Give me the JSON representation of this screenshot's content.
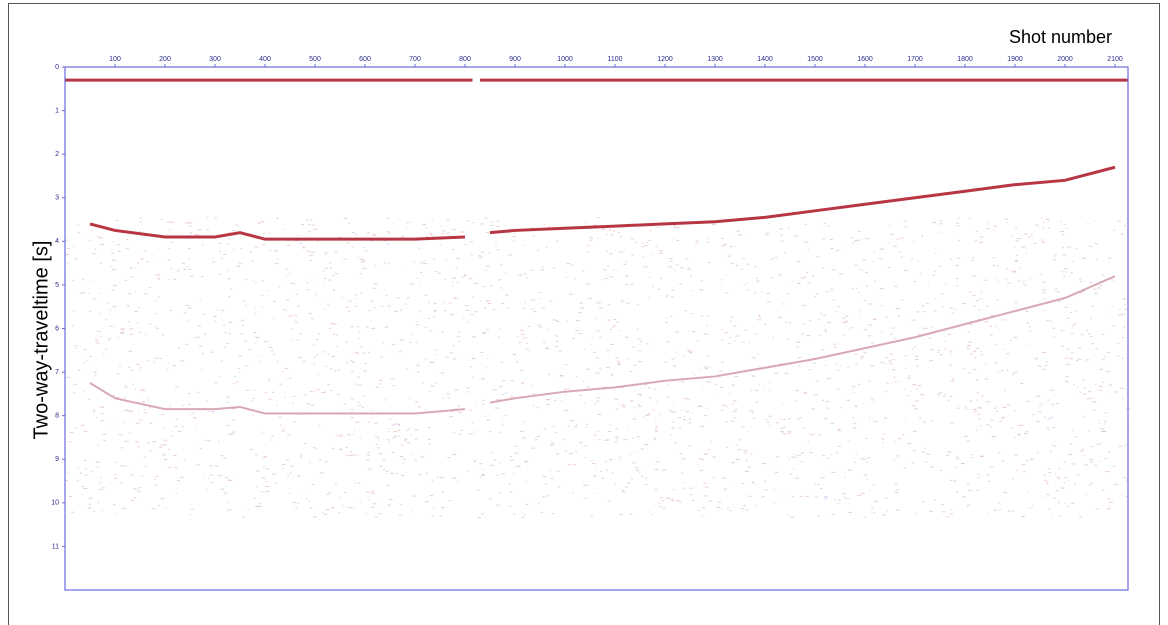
{
  "chart_data": {
    "type": "seismic",
    "xlabel": "Shot number",
    "ylabel": "Two-way-traveltime [s]",
    "xlim": [
      0,
      2126
    ],
    "ylim": [
      0,
      12
    ],
    "y_inverted": true,
    "xticks": [
      100,
      200,
      300,
      400,
      500,
      600,
      700,
      800,
      900,
      1000,
      1100,
      1200,
      1300,
      1400,
      1500,
      1600,
      1700,
      1800,
      1900,
      2000,
      2100
    ],
    "yticks": [
      0,
      1,
      2,
      3,
      4,
      5,
      6,
      7,
      8,
      9,
      10,
      11
    ],
    "frame_color": "#6b6bdc",
    "series": [
      {
        "color": "#b02030",
        "x": [
          0,
          815,
          822,
          830,
          2126
        ],
        "values": [
          0.3,
          0.3,
          null,
          0.3,
          0.3
        ]
      },
      {
        "color": "#b02030",
        "x": [
          50,
          100,
          200,
          300,
          350,
          400,
          500,
          600,
          700,
          800,
          820,
          850,
          900,
          1000,
          1100,
          1200,
          1300,
          1400,
          1500,
          1600,
          1700,
          1800,
          1900,
          2000,
          2100
        ],
        "values": [
          3.6,
          3.75,
          3.9,
          3.9,
          3.8,
          3.95,
          3.95,
          3.95,
          3.95,
          3.9,
          null,
          3.8,
          3.75,
          3.7,
          3.65,
          3.6,
          3.55,
          3.45,
          3.3,
          3.15,
          3.0,
          2.85,
          2.7,
          2.6,
          2.3
        ]
      },
      {
        "color": "#c07080",
        "x": [
          50,
          100,
          200,
          300,
          350,
          400,
          500,
          600,
          700,
          800,
          820,
          850,
          900,
          1000,
          1100,
          1200,
          1300,
          1400,
          1500,
          1600,
          1700,
          1800,
          1900,
          2000,
          2100
        ],
        "values": [
          7.25,
          7.6,
          7.85,
          7.85,
          7.8,
          7.95,
          7.95,
          7.95,
          7.95,
          7.85,
          null,
          7.7,
          7.6,
          7.45,
          7.35,
          7.2,
          7.1,
          6.9,
          6.7,
          6.45,
          6.2,
          5.9,
          5.6,
          5.3,
          4.8
        ]
      }
    ]
  }
}
